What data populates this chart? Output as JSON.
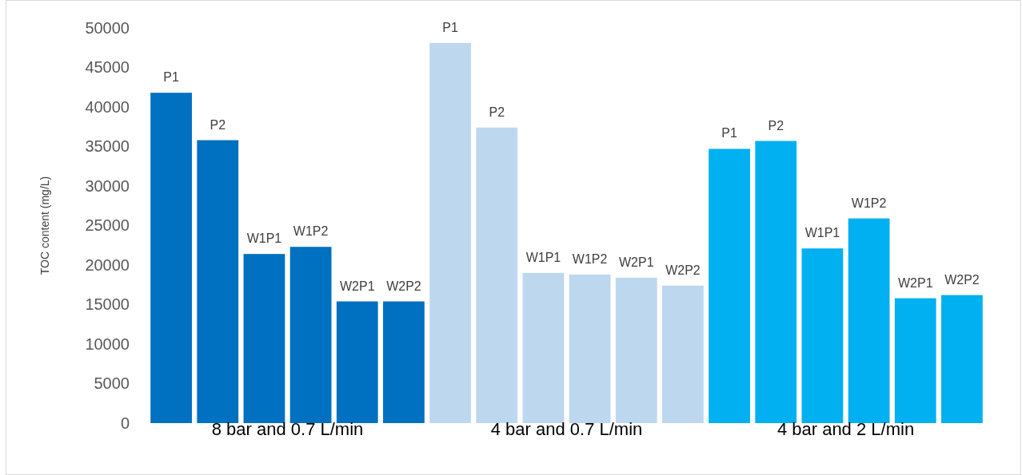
{
  "chart_data": {
    "type": "bar",
    "ylabel": "TOC content (mg/L)",
    "categories": [
      "8 bar and 0.7 L/min",
      "4 bar and 0.7 L/min",
      "4 bar and 2 L/min"
    ],
    "ylim": [
      0,
      50000
    ],
    "yticks": [
      0,
      5000,
      10000,
      15000,
      20000,
      25000,
      30000,
      35000,
      40000,
      45000,
      50000
    ],
    "grid": false,
    "legend": false,
    "series": [
      {
        "name": "P1",
        "colors": [
          "#0070c0",
          "#bdd7ee",
          "#00b0f0"
        ],
        "values": [
          41800,
          48100,
          34700
        ]
      },
      {
        "name": "P2",
        "colors": [
          "#0070c0",
          "#bdd7ee",
          "#00b0f0"
        ],
        "values": [
          35800,
          37400,
          35700
        ]
      },
      {
        "name": "W1P1",
        "colors": [
          "#0070c0",
          "#bdd7ee",
          "#00b0f0"
        ],
        "values": [
          21400,
          19000,
          22100
        ]
      },
      {
        "name": "W1P2",
        "colors": [
          "#0070c0",
          "#bdd7ee",
          "#00b0f0"
        ],
        "values": [
          22300,
          18800,
          25900
        ]
      },
      {
        "name": "W2P1",
        "colors": [
          "#0070c0",
          "#bdd7ee",
          "#00b0f0"
        ],
        "values": [
          15400,
          18400,
          15800
        ]
      },
      {
        "name": "W2P2",
        "colors": [
          "#0070c0",
          "#bdd7ee",
          "#00b0f0"
        ],
        "values": [
          15400,
          17400,
          16200
        ]
      }
    ]
  }
}
